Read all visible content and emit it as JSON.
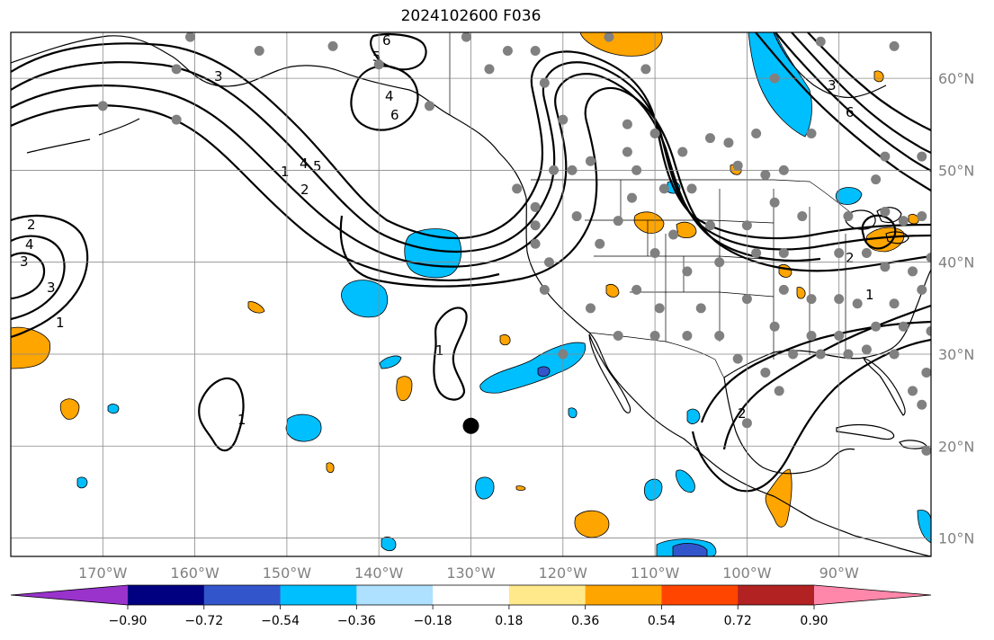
{
  "title": "2024102600 F036",
  "map": {
    "projection": "PlateCarree",
    "lon_range": [
      -180,
      -80
    ],
    "lat_range": [
      8,
      65
    ],
    "grid": true,
    "lat_ticks": [
      {
        "lat": 60,
        "label": "60°N"
      },
      {
        "lat": 50,
        "label": "50°N"
      },
      {
        "lat": 40,
        "label": "40°N"
      },
      {
        "lat": 30,
        "label": "30°N"
      },
      {
        "lat": 20,
        "label": "20°N"
      },
      {
        "lat": 10,
        "label": "10°N"
      }
    ],
    "lon_ticks": [
      {
        "lon": -170,
        "label": "170°W"
      },
      {
        "lon": -160,
        "label": "160°W"
      },
      {
        "lon": -150,
        "label": "150°W"
      },
      {
        "lon": -140,
        "label": "140°W"
      },
      {
        "lon": -130,
        "label": "130°W"
      },
      {
        "lon": -120,
        "label": "120°W"
      },
      {
        "lon": -110,
        "label": "110°W"
      },
      {
        "lon": -100,
        "label": "100°W"
      },
      {
        "lon": -90,
        "label": "90°W"
      }
    ],
    "marker": {
      "lon": -130,
      "lat": 22.2,
      "color": "#000000"
    },
    "contour_labels": [
      "1",
      "2",
      "3",
      "4",
      "5",
      "6"
    ]
  },
  "colorbar": {
    "colors": [
      "#9933cc",
      "#000080",
      "#3355cc",
      "#00bfff",
      "#aee0ff",
      "#ffffff",
      "#ffe98a",
      "#ffa500",
      "#ff4500",
      "#b22222",
      "#ff88aa"
    ],
    "tick_labels": [
      "−0.90",
      "−0.72",
      "−0.54",
      "−0.36",
      "−0.18",
      "0.18",
      "0.36",
      "0.54",
      "0.72",
      "0.90"
    ]
  },
  "chart_data": {
    "type": "heatmap",
    "title": "2024102600 F036",
    "xlabel": "",
    "ylabel": "",
    "xlim": [
      -180,
      -80
    ],
    "ylim": [
      8,
      65
    ],
    "levels": [
      -0.9,
      -0.72,
      -0.54,
      -0.36,
      -0.18,
      0.18,
      0.36,
      0.54,
      0.72,
      0.9
    ],
    "stations": [
      [
        -160.5,
        64.5
      ],
      [
        -130.5,
        64.5
      ],
      [
        -115,
        64.5
      ],
      [
        -153,
        63
      ],
      [
        -145,
        63.5
      ],
      [
        -126,
        63
      ],
      [
        -123,
        63
      ],
      [
        -92,
        64
      ],
      [
        -84,
        63.5
      ],
      [
        -162,
        61
      ],
      [
        -140,
        61.5
      ],
      [
        -128,
        61
      ],
      [
        -122,
        59.5
      ],
      [
        -111,
        61
      ],
      [
        -97,
        60
      ],
      [
        -170,
        57
      ],
      [
        -162,
        55.5
      ],
      [
        -134.5,
        57
      ],
      [
        -120,
        55.5
      ],
      [
        -113,
        55
      ],
      [
        -104,
        53.5
      ],
      [
        -102,
        53
      ],
      [
        -110,
        54
      ],
      [
        -99,
        54
      ],
      [
        -93,
        54
      ],
      [
        -121,
        50
      ],
      [
        -117,
        51
      ],
      [
        -107,
        52
      ],
      [
        -113,
        52
      ],
      [
        -106,
        48
      ],
      [
        -101,
        50.5
      ],
      [
        -98,
        49.5
      ],
      [
        -96,
        50
      ],
      [
        -86,
        49
      ],
      [
        -85,
        51.5
      ],
      [
        -81,
        51.5
      ],
      [
        -125,
        48
      ],
      [
        -119,
        50
      ],
      [
        -112,
        50
      ],
      [
        -112.5,
        47
      ],
      [
        -109,
        48
      ],
      [
        -114,
        44.5
      ],
      [
        -118.5,
        45
      ],
      [
        -123,
        46
      ],
      [
        -123,
        44
      ],
      [
        -108,
        43
      ],
      [
        -104,
        44
      ],
      [
        -100,
        44
      ],
      [
        -97,
        46.5
      ],
      [
        -94,
        45
      ],
      [
        -89,
        45
      ],
      [
        -83,
        44.5
      ],
      [
        -81,
        45
      ],
      [
        -85,
        45.5
      ],
      [
        -123,
        42
      ],
      [
        -116,
        42
      ],
      [
        -121.5,
        40
      ],
      [
        -110,
        41
      ],
      [
        -106.5,
        39
      ],
      [
        -103,
        40
      ],
      [
        -99,
        41
      ],
      [
        -96,
        41
      ],
      [
        -90,
        41
      ],
      [
        -87,
        41
      ],
      [
        -85,
        39.5
      ],
      [
        -82,
        39
      ],
      [
        -80,
        40.5
      ],
      [
        -122,
        37
      ],
      [
        -117,
        35
      ],
      [
        -112,
        37
      ],
      [
        -109.5,
        35
      ],
      [
        -105,
        35
      ],
      [
        -100,
        36
      ],
      [
        -96,
        37
      ],
      [
        -93,
        36
      ],
      [
        -90,
        36
      ],
      [
        -88,
        35.5
      ],
      [
        -84,
        35.5
      ],
      [
        -81,
        37
      ],
      [
        -114,
        32
      ],
      [
        -110,
        32
      ],
      [
        -106.5,
        32
      ],
      [
        -103,
        32
      ],
      [
        -97,
        33
      ],
      [
        -93,
        32
      ],
      [
        -90,
        32
      ],
      [
        -86,
        33
      ],
      [
        -83,
        33
      ],
      [
        -80,
        32.5
      ],
      [
        -101,
        29.5
      ],
      [
        -98,
        28
      ],
      [
        -95,
        30
      ],
      [
        -92,
        30
      ],
      [
        -89,
        30
      ],
      [
        -87,
        30.5
      ],
      [
        -84,
        30
      ],
      [
        -80.5,
        28
      ],
      [
        -82,
        26
      ],
      [
        -81,
        24.5
      ],
      [
        -96.5,
        26
      ],
      [
        -100,
        22.5
      ],
      [
        -80.5,
        19.5
      ],
      [
        -120,
        30
      ]
    ]
  }
}
